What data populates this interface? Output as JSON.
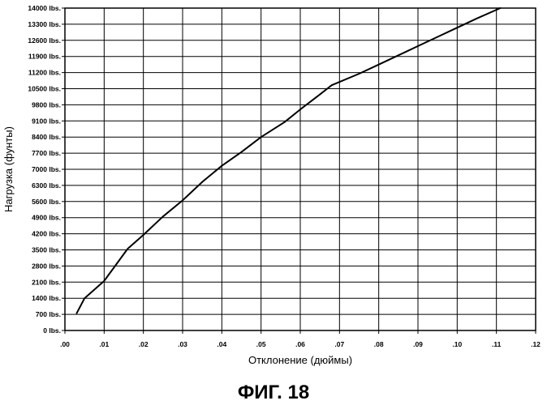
{
  "chart_data": {
    "type": "line",
    "title": "",
    "xlabel": "Отклонение (дюймы)",
    "ylabel": "Нагрузка (фунты)",
    "caption": "ФИГ. 18",
    "xlim": [
      0,
      0.12
    ],
    "ylim": [
      0,
      14000
    ],
    "grid": true,
    "x_ticks": [
      0,
      0.01,
      0.02,
      0.03,
      0.04,
      0.05,
      0.06,
      0.07,
      0.08,
      0.09,
      0.1,
      0.11,
      0.12
    ],
    "x_tick_labels": [
      ".00",
      ".01",
      ".02",
      ".03",
      ".04",
      ".05",
      ".06",
      ".07",
      ".08",
      ".09",
      ".10",
      ".11",
      ".12"
    ],
    "y_ticks": [
      0,
      700,
      1400,
      2100,
      2800,
      3500,
      4200,
      4900,
      5600,
      6300,
      7000,
      7700,
      8400,
      9100,
      9800,
      10500,
      11200,
      11900,
      12600,
      13300,
      14000
    ],
    "y_tick_labels": [
      "0 lbs.",
      "700 lbs.",
      "1400 lbs.",
      "2100 lbs.",
      "2800 lbs.",
      "3500 lbs.",
      "4200 lbs.",
      "4900 lbs.",
      "5600 lbs.",
      "6300 lbs.",
      "7000 lbs.",
      "7700 lbs.",
      "8400 lbs.",
      "9100 lbs.",
      "9800 lbs.",
      "10500 lbs.",
      "11200 lbs.",
      "11900 lbs.",
      "12600 lbs.",
      "13300 lbs.",
      "14000 lbs."
    ],
    "series": [
      {
        "x": [
          0.003,
          0.005,
          0.01,
          0.016,
          0.02,
          0.025,
          0.03,
          0.035,
          0.04,
          0.045,
          0.05,
          0.056,
          0.06,
          0.065,
          0.068,
          0.075,
          0.08,
          0.085,
          0.09,
          0.095,
          0.1,
          0.105,
          0.111
        ],
        "y": [
          750,
          1400,
          2150,
          3550,
          4150,
          4950,
          5650,
          6450,
          7150,
          7750,
          8400,
          9050,
          9600,
          10250,
          10650,
          11150,
          11550,
          11950,
          12350,
          12750,
          13150,
          13550,
          14000
        ]
      }
    ]
  }
}
